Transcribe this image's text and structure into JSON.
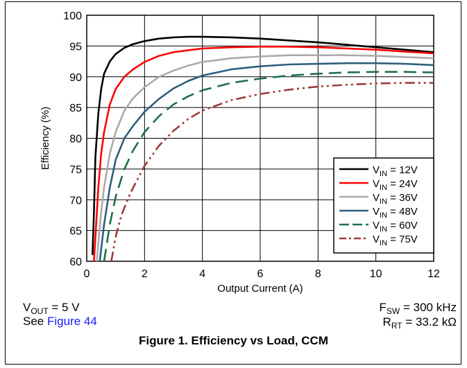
{
  "chart_data": {
    "type": "line",
    "title": "",
    "xlabel": "Output Current (A)",
    "ylabel": "Efficiency (%)",
    "xlim": [
      0,
      12
    ],
    "ylim": [
      60,
      100
    ],
    "xticks": [
      0,
      2,
      4,
      6,
      8,
      10,
      12
    ],
    "yticks": [
      60,
      65,
      70,
      75,
      80,
      85,
      90,
      95,
      100
    ],
    "grid": true,
    "legend_position": "bottom-right",
    "series": [
      {
        "label_prefix": "V",
        "label_sub": "IN",
        "label_suffix": " = 12V",
        "color": "#000000",
        "dash": "solid",
        "x": [
          0.2,
          0.25,
          0.3,
          0.4,
          0.5,
          0.6,
          0.8,
          1.0,
          1.3,
          1.6,
          2.0,
          2.5,
          3.0,
          3.5,
          4.0,
          5.0,
          6.0,
          7.0,
          8.0,
          9.0,
          10.0,
          11.0,
          12.0
        ],
        "y": [
          61,
          68,
          77,
          84,
          88,
          90.5,
          92.5,
          93.7,
          94.7,
          95.3,
          95.8,
          96.2,
          96.4,
          96.5,
          96.5,
          96.4,
          96.2,
          95.9,
          95.6,
          95.2,
          94.8,
          94.4,
          94.0
        ]
      },
      {
        "label_prefix": "V",
        "label_sub": "IN",
        "label_suffix": " = 24V",
        "color": "#ff0000",
        "dash": "solid",
        "x": [
          0.25,
          0.3,
          0.4,
          0.5,
          0.6,
          0.8,
          1.0,
          1.3,
          1.6,
          2.0,
          2.5,
          3.0,
          3.5,
          4.0,
          5.0,
          6.0,
          7.0,
          8.0,
          9.0,
          10.0,
          11.0,
          12.0
        ],
        "y": [
          60,
          64,
          72,
          77.5,
          81,
          85.5,
          88,
          90,
          91.2,
          92.4,
          93.4,
          94.0,
          94.3,
          94.6,
          94.8,
          94.9,
          94.9,
          94.8,
          94.6,
          94.4,
          94.1,
          93.8
        ]
      },
      {
        "label_prefix": "V",
        "label_sub": "IN",
        "label_suffix": " = 36V",
        "color": "#aaaaaa",
        "dash": "solid",
        "x": [
          0.35,
          0.4,
          0.5,
          0.6,
          0.8,
          1.0,
          1.3,
          1.6,
          2.0,
          2.5,
          3.0,
          3.5,
          4.0,
          5.0,
          6.0,
          7.0,
          8.0,
          9.0,
          10.0,
          11.0,
          12.0
        ],
        "y": [
          60,
          63,
          68,
          72,
          77.5,
          81,
          84.5,
          86.5,
          88.3,
          90.0,
          91.0,
          91.8,
          92.4,
          93.0,
          93.3,
          93.5,
          93.5,
          93.5,
          93.4,
          93.2,
          93.0
        ]
      },
      {
        "label_prefix": "V",
        "label_sub": "IN",
        "label_suffix": " = 48V",
        "color": "#2e5e7e",
        "dash": "solid",
        "x": [
          0.45,
          0.5,
          0.6,
          0.8,
          1.0,
          1.3,
          1.6,
          2.0,
          2.5,
          3.0,
          3.5,
          4.0,
          5.0,
          6.0,
          7.0,
          8.0,
          9.0,
          10.0,
          11.0,
          12.0
        ],
        "y": [
          60,
          62,
          66,
          72,
          76.5,
          80,
          82,
          84.3,
          86.4,
          88.1,
          89.3,
          90.2,
          91.2,
          91.7,
          92.0,
          92.1,
          92.2,
          92.2,
          92.1,
          91.9
        ]
      },
      {
        "label_prefix": "V",
        "label_sub": "IN",
        "label_suffix": " = 60V",
        "color": "#1e6e4a",
        "dash": "longdash",
        "x": [
          0.6,
          0.7,
          0.8,
          1.0,
          1.3,
          1.6,
          2.0,
          2.5,
          3.0,
          3.5,
          4.0,
          5.0,
          6.0,
          7.0,
          8.0,
          9.0,
          10.0,
          11.0,
          12.0
        ],
        "y": [
          60,
          63,
          66,
          70.5,
          75,
          78,
          81,
          83.6,
          85.5,
          86.8,
          87.8,
          89.0,
          89.7,
          90.2,
          90.5,
          90.7,
          90.8,
          90.8,
          90.7
        ]
      },
      {
        "label_prefix": "V",
        "label_sub": "IN",
        "label_suffix": " = 75V",
        "color": "#9e3b3b",
        "dash": "dashdotdot",
        "x": [
          0.85,
          1.0,
          1.2,
          1.5,
          2.0,
          2.5,
          3.0,
          3.5,
          4.0,
          5.0,
          6.0,
          7.0,
          8.0,
          9.0,
          10.0,
          11.0,
          12.0
        ],
        "y": [
          60,
          64,
          67.5,
          71,
          75.5,
          78.8,
          81.2,
          83.1,
          84.5,
          86.2,
          87.2,
          87.9,
          88.4,
          88.7,
          88.9,
          89.0,
          89.0
        ]
      }
    ]
  },
  "notes": {
    "vout_prefix": "V",
    "vout_sub": "OUT",
    "vout_suffix": " = 5 V",
    "see_text": "See ",
    "see_link": "Figure 44",
    "fsw_prefix": "F",
    "fsw_sub": "SW",
    "fsw_suffix": " = 300 kHz",
    "rrt_prefix": "R",
    "rrt_sub": "RT",
    "rrt_suffix": " = 33.2 kΩ"
  },
  "caption": "Figure 1. Efficiency vs Load, CCM"
}
